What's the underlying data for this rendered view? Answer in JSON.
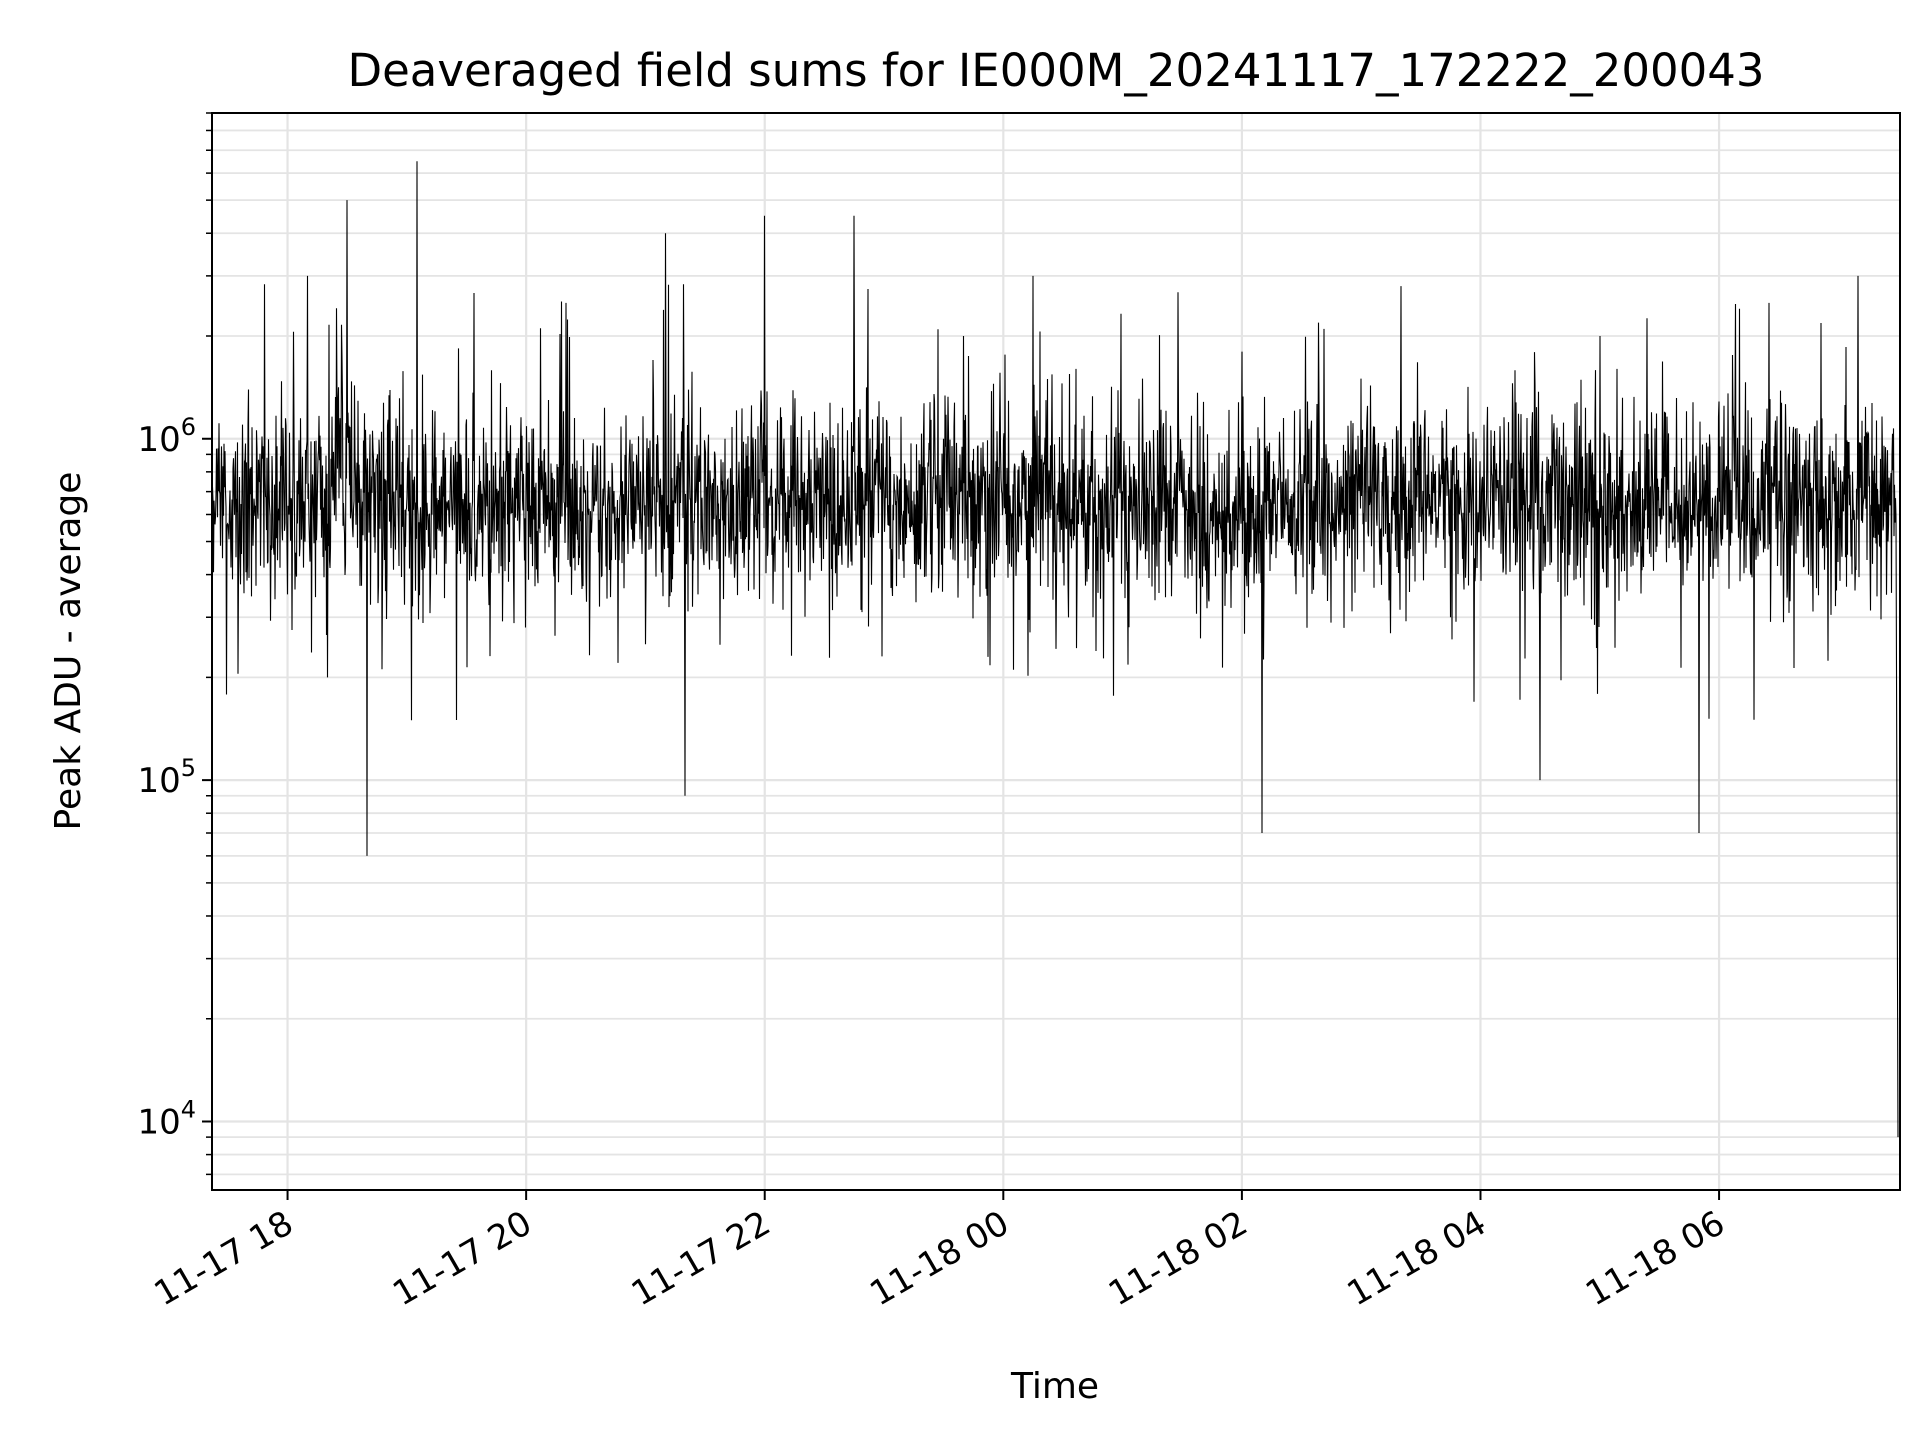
{
  "chart_data": {
    "type": "line",
    "title": "Deaveraged field sums for IE000M_20241117_172222_200043",
    "xlabel": "Time",
    "ylabel": "Peak ADU - average",
    "y_scale": "log",
    "ylim": [
      6300,
      9000000
    ],
    "xlim": [
      "2024-11-17 17:22",
      "2024-11-18 07:31"
    ],
    "x_ticks": [
      "11-17 18",
      "11-17 20",
      "11-17 22",
      "11-18 00",
      "11-18 02",
      "11-18 04",
      "11-18 06"
    ],
    "y_ticks": [
      {
        "base": "10",
        "exp": "4",
        "value": 10000
      },
      {
        "base": "10",
        "exp": "5",
        "value": 100000
      },
      {
        "base": "10",
        "exp": "6",
        "value": 1000000
      }
    ],
    "grid": true,
    "line_color": "#000000",
    "series": [
      {
        "x": [
          "2024-11-17 17:22",
          "2024-11-17 17:40",
          "2024-11-17 18:00",
          "2024-11-17 18:10",
          "2024-11-17 18:20",
          "2024-11-17 18:30",
          "2024-11-17 18:40",
          "2024-11-17 18:55",
          "2024-11-17 19:05",
          "2024-11-17 19:15",
          "2024-11-17 19:25",
          "2024-11-17 19:45",
          "2024-11-17 20:00",
          "2024-11-17 20:20",
          "2024-11-17 20:40",
          "2024-11-17 21:00",
          "2024-11-17 21:10",
          "2024-11-17 21:20",
          "2024-11-17 21:40",
          "2024-11-17 22:00",
          "2024-11-17 22:25",
          "2024-11-17 22:45",
          "2024-11-17 23:15",
          "2024-11-17 23:30",
          "2024-11-17 23:40",
          "2024-11-18 00:00",
          "2024-11-18 00:15",
          "2024-11-18 00:45",
          "2024-11-18 01:10",
          "2024-11-18 01:30",
          "2024-11-18 02:00",
          "2024-11-18 02:10",
          "2024-11-18 02:30",
          "2024-11-18 03:00",
          "2024-11-18 03:20",
          "2024-11-18 03:45",
          "2024-11-18 04:10",
          "2024-11-18 04:30",
          "2024-11-18 05:00",
          "2024-11-18 05:20",
          "2024-11-18 05:50",
          "2024-11-18 06:10",
          "2024-11-18 06:25",
          "2024-11-18 06:45",
          "2024-11-18 07:10",
          "2024-11-18 07:25",
          "2024-11-18 07:31"
        ],
        "y": [
          700000,
          1100000,
          350000,
          3000000,
          200000,
          5000000,
          60000,
          900000,
          6500000,
          400000,
          150000,
          500000,
          700000,
          2500000,
          600000,
          250000,
          4000000,
          90000,
          1000000,
          4500000,
          1200000,
          4500000,
          700000,
          1000000,
          2000000,
          1000000,
          3000000,
          300000,
          1500000,
          700000,
          1800000,
          70000,
          500000,
          1500000,
          2800000,
          300000,
          900000,
          100000,
          2000000,
          500000,
          70000,
          600000,
          2500000,
          400000,
          3000000,
          500000,
          9000
        ]
      }
    ]
  }
}
